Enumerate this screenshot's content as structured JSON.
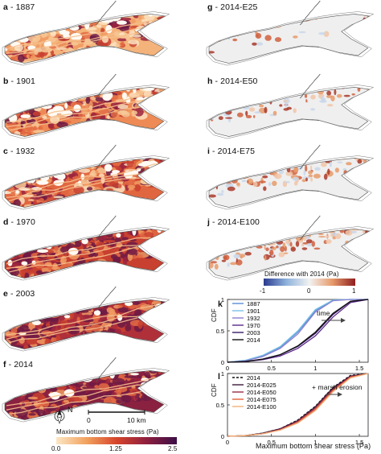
{
  "panels_left": [
    {
      "letter": "a",
      "label": "1887"
    },
    {
      "letter": "b",
      "label": "1901"
    },
    {
      "letter": "c",
      "label": "1932"
    },
    {
      "letter": "d",
      "label": "1970"
    },
    {
      "letter": "e",
      "label": "2003"
    },
    {
      "letter": "f",
      "label": "2014"
    }
  ],
  "panels_right": [
    {
      "letter": "g",
      "label": "2014-E25"
    },
    {
      "letter": "h",
      "label": "2014-E50"
    },
    {
      "letter": "i",
      "label": "2014-E75"
    },
    {
      "letter": "j",
      "label": "2014-E100"
    }
  ],
  "scalebar": {
    "start": "0",
    "end": "10 km",
    "north": "N"
  },
  "colorbar_left": {
    "title": "Maximum bottom shear stress (Pa)",
    "ticks": [
      "0.0",
      "1.25",
      "2.5"
    ],
    "colors": [
      "#fbe7c6",
      "#f2a25e",
      "#d6452c",
      "#8e1f3f",
      "#3b0f47"
    ]
  },
  "colorbar_right": {
    "title": "Difference with 2014 (Pa)",
    "ticks": [
      "-1",
      "0",
      "1"
    ],
    "colors": [
      "#2a3a8f",
      "#8fb3dc",
      "#f2f2f2",
      "#e79a6a",
      "#8e1f1f"
    ]
  },
  "chart_k": {
    "letter": "k",
    "ylabel": "CDF",
    "annotation": "time",
    "yticks": [
      "0",
      "0.5",
      "1"
    ],
    "xticks": [
      "0",
      "0.5",
      "1",
      "1.5"
    ]
  },
  "chart_l": {
    "letter": "l",
    "ylabel": "CDF",
    "annotation": "+ marsh erosion",
    "yticks": [
      "0",
      "0.5",
      "1"
    ],
    "xticks": [
      "0",
      "0.5",
      "1",
      "1.5"
    ],
    "xlabel": "Maximum bottom shear stress (Pa)"
  },
  "chart_data": [
    {
      "type": "line",
      "x": [
        0,
        0.2,
        0.4,
        0.6,
        0.8,
        1.0,
        1.2,
        1.4,
        1.6
      ],
      "xlim": [
        0,
        1.6
      ],
      "ylim": [
        0,
        1
      ],
      "legend_position": "top-left",
      "series": [
        {
          "name": "1887",
          "color": "#5a8fd6",
          "values": [
            0,
            0.03,
            0.1,
            0.24,
            0.48,
            0.82,
            0.99,
            1.0,
            1.0
          ]
        },
        {
          "name": "1901",
          "color": "#77c2e6",
          "values": [
            0,
            0.03,
            0.11,
            0.25,
            0.5,
            0.84,
            0.99,
            1.0,
            1.0
          ]
        },
        {
          "name": "1932",
          "color": "#8a7fd0",
          "values": [
            0,
            0.02,
            0.09,
            0.22,
            0.45,
            0.8,
            0.98,
            1.0,
            1.0
          ]
        },
        {
          "name": "1970",
          "color": "#5b2a8a",
          "values": [
            0,
            0.01,
            0.04,
            0.1,
            0.22,
            0.42,
            0.72,
            0.95,
            1.0
          ]
        },
        {
          "name": "2003",
          "color": "#3a1a6a",
          "values": [
            0,
            0.01,
            0.05,
            0.12,
            0.25,
            0.46,
            0.76,
            0.97,
            1.0
          ]
        },
        {
          "name": "2014",
          "color": "#111111",
          "values": [
            0,
            0.01,
            0.05,
            0.12,
            0.26,
            0.48,
            0.78,
            0.97,
            1.0
          ]
        }
      ]
    },
    {
      "type": "line",
      "x": [
        0,
        0.2,
        0.4,
        0.6,
        0.8,
        1.0,
        1.2,
        1.4,
        1.6
      ],
      "xlim": [
        0,
        1.6
      ],
      "ylim": [
        0,
        1
      ],
      "legend_position": "top-left",
      "series": [
        {
          "name": "2014",
          "color": "#111111",
          "dashed": true,
          "values": [
            0,
            0.01,
            0.05,
            0.12,
            0.26,
            0.48,
            0.78,
            0.97,
            1.0
          ]
        },
        {
          "name": "2014-E025",
          "color": "#3a1a3a",
          "values": [
            0,
            0.01,
            0.05,
            0.12,
            0.25,
            0.47,
            0.77,
            0.96,
            1.0
          ]
        },
        {
          "name": "2014-E050",
          "color": "#9a2a45",
          "values": [
            0,
            0.01,
            0.04,
            0.11,
            0.24,
            0.45,
            0.75,
            0.95,
            1.0
          ]
        },
        {
          "name": "2014-E075",
          "color": "#e0603a",
          "values": [
            0,
            0.01,
            0.04,
            0.1,
            0.22,
            0.43,
            0.73,
            0.94,
            1.0
          ]
        },
        {
          "name": "2014-E100",
          "color": "#f0b078",
          "values": [
            0,
            0.01,
            0.04,
            0.1,
            0.21,
            0.41,
            0.71,
            0.93,
            1.0
          ]
        }
      ]
    }
  ]
}
